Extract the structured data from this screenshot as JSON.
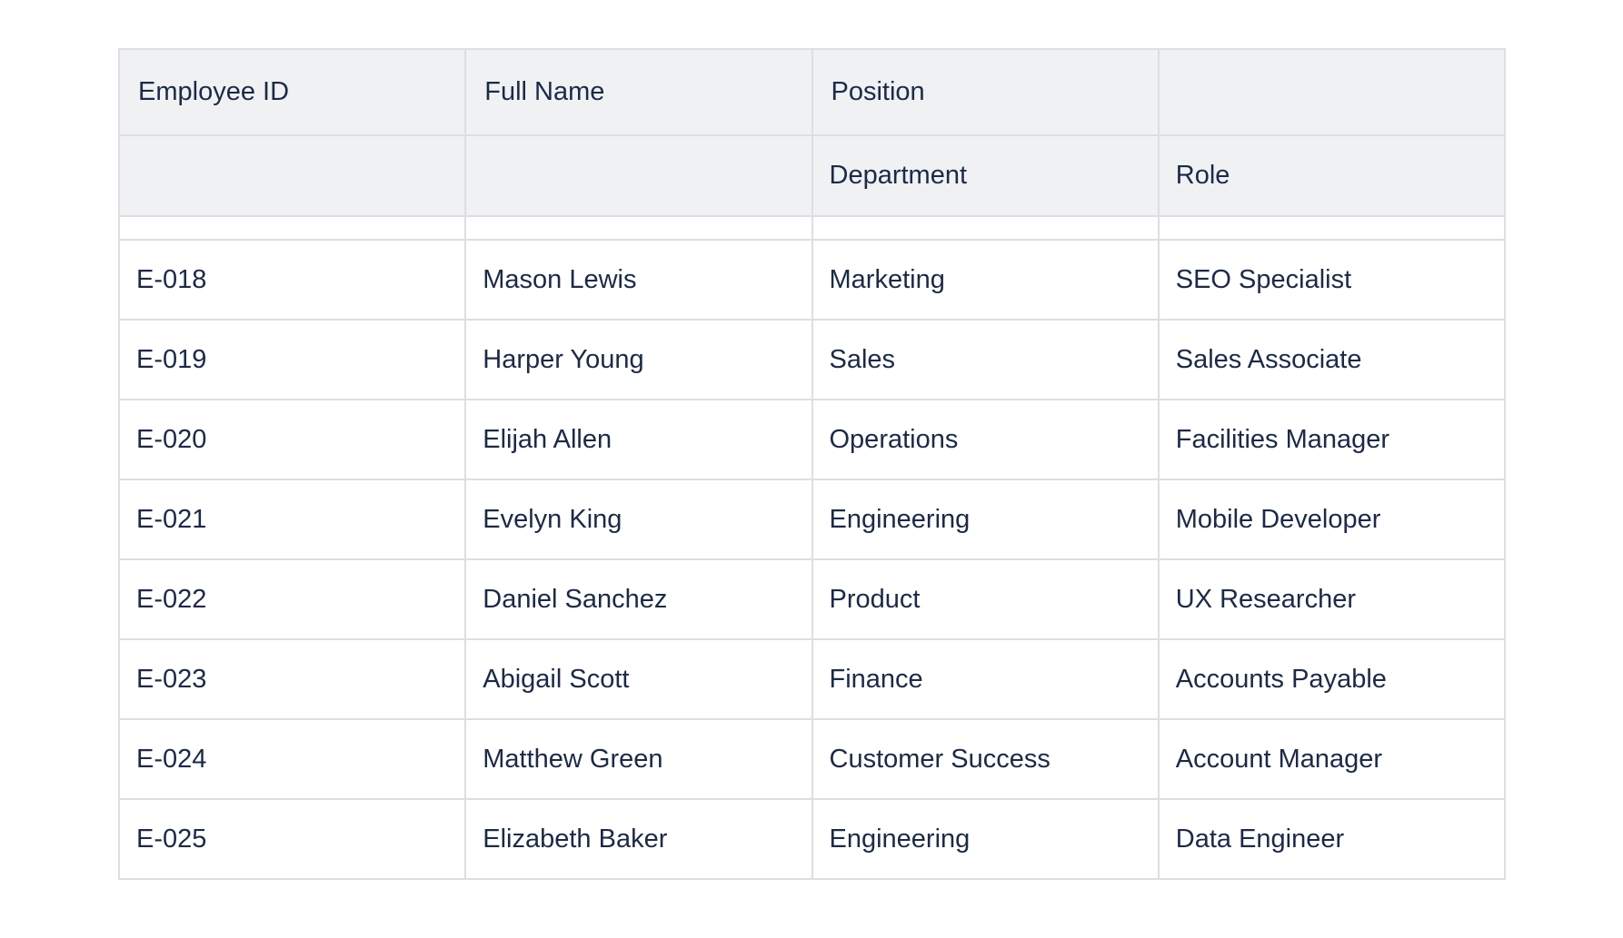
{
  "table": {
    "header_row1": [
      "Employee ID",
      "Full Name",
      "Position",
      ""
    ],
    "header_row2": [
      "",
      "",
      "Department",
      "Role"
    ],
    "rows": [
      [
        "E-018",
        "Mason Lewis",
        "Marketing",
        "SEO Specialist"
      ],
      [
        "E-019",
        "Harper Young",
        "Sales",
        "Sales Associate"
      ],
      [
        "E-020",
        "Elijah Allen",
        "Operations",
        "Facilities Manager"
      ],
      [
        "E-021",
        "Evelyn King",
        "Engineering",
        "Mobile Developer"
      ],
      [
        "E-022",
        "Daniel Sanchez",
        "Product",
        "UX Researcher"
      ],
      [
        "E-023",
        "Abigail Scott",
        "Finance",
        "Accounts Payable"
      ],
      [
        "E-024",
        "Matthew Green",
        "Customer Success",
        "Account Manager"
      ],
      [
        "E-025",
        "Elizabeth Baker",
        "Engineering",
        "Data Engineer"
      ]
    ]
  },
  "colors": {
    "header_bg": "#f0f1f3",
    "border": "#dcdee2",
    "text": "#1b2a47"
  }
}
